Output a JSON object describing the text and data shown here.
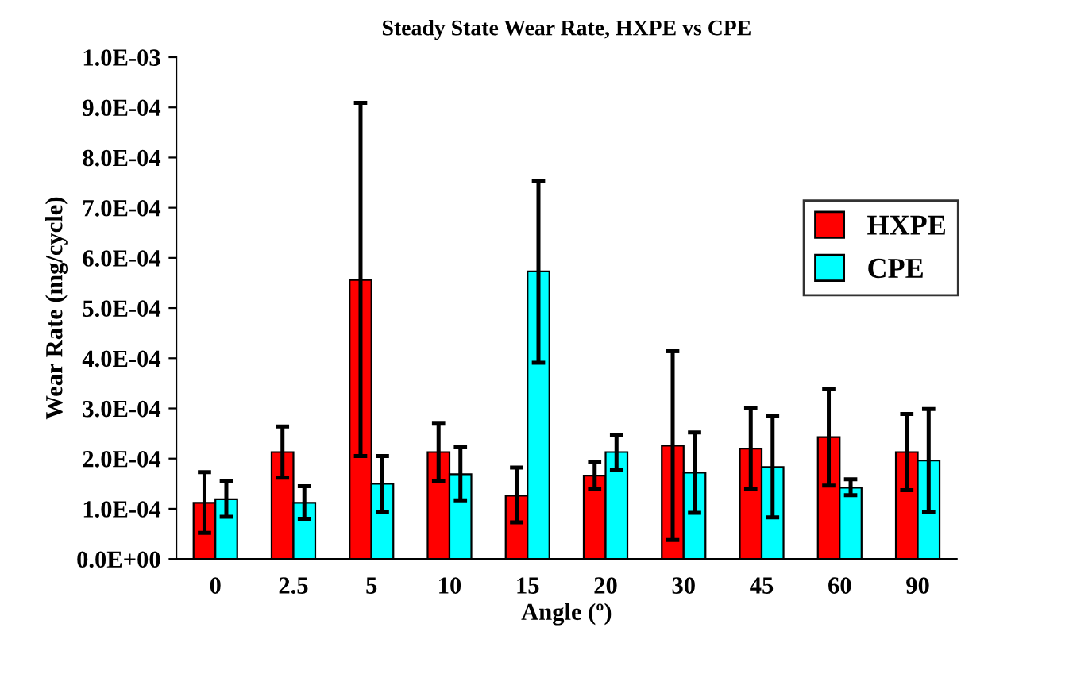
{
  "chart_data": {
    "type": "bar",
    "title": "Steady State Wear Rate, HXPE vs CPE",
    "xlabel": "Angle (º)",
    "ylabel": "Wear Rate (mg/cycle)",
    "categories": [
      "0",
      "2.5",
      "5",
      "10",
      "15",
      "20",
      "30",
      "45",
      "60",
      "90"
    ],
    "series": [
      {
        "name": "HXPE",
        "color": "#ff0000",
        "values": [
          0.000112,
          0.000213,
          0.000556,
          0.000213,
          0.000126,
          0.000166,
          0.000226,
          0.00022,
          0.000243,
          0.000213
        ],
        "errors": [
          [
            5.2e-05,
            0.000173
          ],
          [
            0.000162,
            0.000264
          ],
          [
            0.000205,
            0.000909
          ],
          [
            0.000155,
            0.000271
          ],
          [
            7.3e-05,
            0.000182
          ],
          [
            0.00014,
            0.000193
          ],
          [
            3.8e-05,
            0.000414
          ],
          [
            0.000139,
            0.0003
          ],
          [
            0.000146,
            0.000339
          ],
          [
            0.000137,
            0.000289
          ]
        ]
      },
      {
        "name": "CPE",
        "color": "#00ffff",
        "values": [
          0.000119,
          0.000112,
          0.00015,
          0.000169,
          0.000573,
          0.000213,
          0.000172,
          0.000183,
          0.000142,
          0.000196
        ],
        "errors": [
          [
            8.4e-05,
            0.000155
          ],
          [
            8e-05,
            0.000145
          ],
          [
            9.3e-05,
            0.000205
          ],
          [
            0.000117,
            0.000223
          ],
          [
            0.000391,
            0.000753
          ],
          [
            0.000177,
            0.000248
          ],
          [
            9.2e-05,
            0.000252
          ],
          [
            8.3e-05,
            0.000284
          ],
          [
            0.000127,
            0.000159
          ],
          [
            9.3e-05,
            0.000299
          ]
        ]
      }
    ],
    "ylim": [
      0,
      0.001
    ],
    "yticks": [
      {
        "value": 0,
        "label": "0.0E+00"
      },
      {
        "value": 0.0001,
        "label": "1.0E-04"
      },
      {
        "value": 0.0002,
        "label": "2.0E-04"
      },
      {
        "value": 0.0003,
        "label": "3.0E-04"
      },
      {
        "value": 0.0004,
        "label": "4.0E-04"
      },
      {
        "value": 0.0005,
        "label": "5.0E-04"
      },
      {
        "value": 0.0006,
        "label": "6.0E-04"
      },
      {
        "value": 0.0007,
        "label": "7.0E-04"
      },
      {
        "value": 0.0008,
        "label": "8.0E-04"
      },
      {
        "value": 0.0009,
        "label": "9.0E-04"
      },
      {
        "value": 0.001,
        "label": "1.0E-03"
      }
    ],
    "grid": false,
    "legend": "right"
  }
}
